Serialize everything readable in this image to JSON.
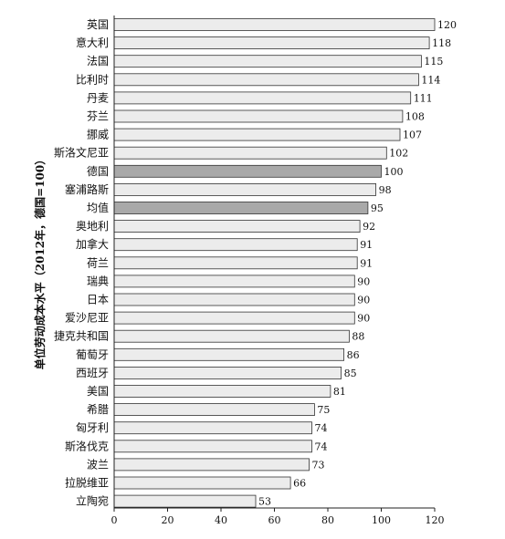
{
  "chart_data": {
    "type": "bar",
    "orientation": "horizontal",
    "ylabel": "单位劳动成本水平（2012年，德国=100）",
    "xlim": [
      0,
      120
    ],
    "xticks": [
      "0",
      "20",
      "40",
      "60",
      "80",
      "100",
      "120"
    ],
    "grid": false,
    "legend": "none",
    "categories": [
      "英国",
      "意大利",
      "法国",
      "比利时",
      "丹麦",
      "芬兰",
      "挪威",
      "斯洛文尼亚",
      "德国",
      "塞浦路斯",
      "均值",
      "奥地利",
      "加拿大",
      "荷兰",
      "瑞典",
      "日本",
      "爱沙尼亚",
      "捷克共和国",
      "葡萄牙",
      "西班牙",
      "美国",
      "希腊",
      "匈牙利",
      "斯洛伐克",
      "波兰",
      "拉脱维亚",
      "立陶宛"
    ],
    "values": [
      120,
      118,
      115,
      114,
      111,
      108,
      107,
      102,
      100,
      98,
      95,
      92,
      91,
      91,
      90,
      90,
      90,
      88,
      86,
      85,
      81,
      75,
      74,
      74,
      73,
      66,
      53
    ],
    "value_labels": [
      "120",
      "118",
      "115",
      "114",
      "111",
      "108",
      "107",
      "102",
      "100",
      "98",
      "95",
      "92",
      "91",
      "91",
      "90",
      "90",
      "90",
      "88",
      "86",
      "85",
      "81",
      "75",
      "74",
      "74",
      "73",
      "66",
      "53"
    ],
    "highlighted": [
      "德国",
      "均值"
    ],
    "colors": {
      "bar_fill": "#ececec",
      "bar_fill_highlight": "#a9a9a9",
      "bar_stroke": "#333333",
      "axis": "#222222"
    }
  }
}
